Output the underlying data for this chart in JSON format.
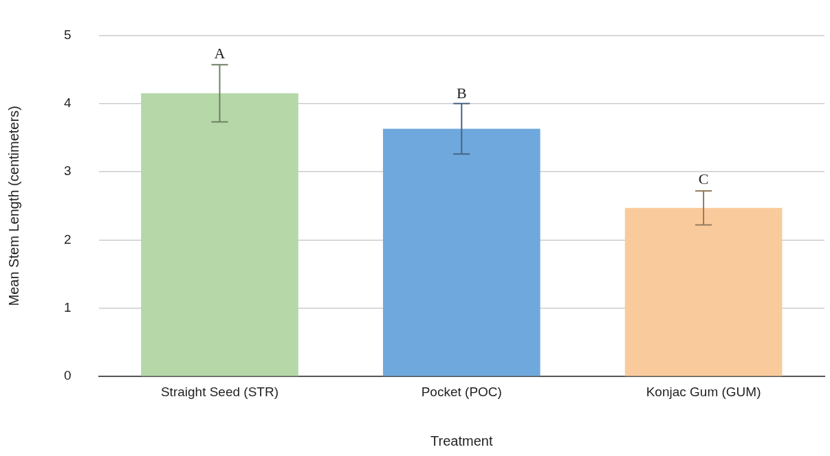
{
  "chart_data": {
    "type": "bar",
    "xlabel": "Treatment",
    "ylabel": "Mean Stem Length (centimeters)",
    "categories": [
      "Straight Seed (STR)",
      "Pocket (POC)",
      "Konjac Gum (GUM)"
    ],
    "values": [
      4.15,
      3.63,
      2.47
    ],
    "colors": [
      "#b6d7a8",
      "#6fa8dc",
      "#f9cb9c"
    ],
    "errors": [
      0.42,
      0.37,
      0.25
    ],
    "ylim": [
      0,
      5
    ],
    "yticks": [
      0,
      1,
      2,
      3,
      4,
      5
    ],
    "grid": "y",
    "legend": false,
    "annotations": [
      {
        "text": "A",
        "x": "Straight Seed (STR)",
        "y": 4.58
      },
      {
        "text": "B",
        "x": "Pocket (POC)",
        "y": 4.0
      },
      {
        "text": "C",
        "x": "Konjac Gum (GUM)",
        "y": 2.74
      }
    ]
  }
}
